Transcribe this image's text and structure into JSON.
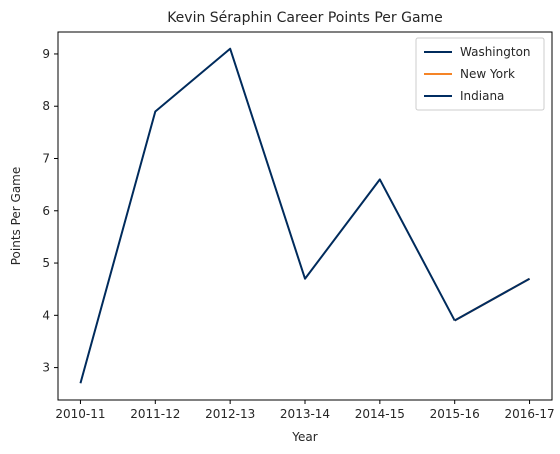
{
  "chart_data": {
    "type": "line",
    "title": "Kevin Séraphin Career Points Per Game",
    "xlabel": "Year",
    "ylabel": "Points Per Game",
    "categories": [
      "2010-11",
      "2011-12",
      "2012-13",
      "2013-14",
      "2014-15",
      "2015-16",
      "2016-17"
    ],
    "yticks": [
      3,
      4,
      5,
      6,
      7,
      8,
      9
    ],
    "ylim": [
      2.38,
      9.42
    ],
    "grid": false,
    "legend_position": "top-right",
    "series": [
      {
        "name": "Washington",
        "color": "#002b5c",
        "x": [
          "2010-11",
          "2011-12",
          "2012-13",
          "2013-14",
          "2014-15",
          "2015-16"
        ],
        "values": [
          2.7,
          7.9,
          9.1,
          4.7,
          6.6,
          3.9
        ]
      },
      {
        "name": "New York",
        "color": "#f58426",
        "x": [
          "2015-16",
          "2016-17"
        ],
        "values": [
          3.9,
          4.7
        ]
      },
      {
        "name": "Indiana",
        "color": "#002d62",
        "x": [
          "2015-16",
          "2016-17"
        ],
        "values": [
          3.9,
          4.7
        ]
      }
    ]
  }
}
